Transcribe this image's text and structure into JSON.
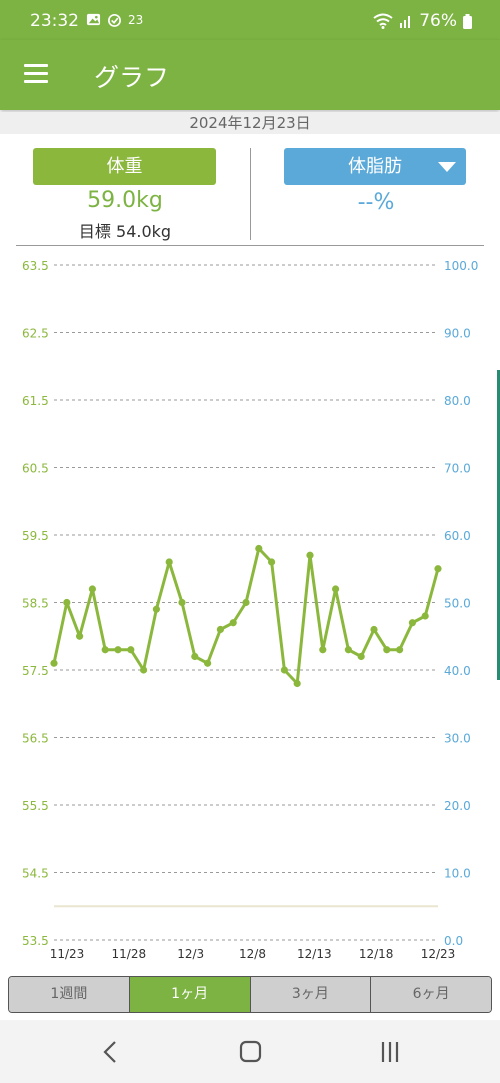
{
  "status_bar": {
    "time": "23:32",
    "notification_icons": [
      "gallery-icon",
      "alarm-icon",
      "calendar-icon"
    ],
    "calendar_badge": "23",
    "battery": "76%"
  },
  "app_bar": {
    "title": "グラフ"
  },
  "date": "2024年12月23日",
  "weight_panel": {
    "label": "体重",
    "value": "59.0kg",
    "goal": "目標 54.0kg",
    "color": "#7cb342"
  },
  "fat_panel": {
    "label": "体脂肪",
    "value": "--%",
    "color": "#5aa9d8"
  },
  "period_tabs": [
    {
      "label": "1週間",
      "active": false
    },
    {
      "label": "1ヶ月",
      "active": true
    },
    {
      "label": "3ヶ月",
      "active": false
    },
    {
      "label": "6ヶ月",
      "active": false
    }
  ],
  "chart_data": {
    "type": "line",
    "x_tick_labels": [
      "11/23",
      "11/28",
      "12/3",
      "12/8",
      "12/13",
      "12/18",
      "12/23"
    ],
    "y_left_ticks": [
      "63.5",
      "62.5",
      "61.5",
      "60.5",
      "59.5",
      "58.5",
      "57.5",
      "56.5",
      "55.5",
      "54.5",
      "53.5"
    ],
    "y_right_ticks": [
      "100.0",
      "90.0",
      "80.0",
      "70.0",
      "60.0",
      "50.0",
      "40.0",
      "30.0",
      "20.0",
      "10.0",
      "0.0"
    ],
    "ylim_left": [
      53.5,
      63.5
    ],
    "ylim_right": [
      0,
      100
    ],
    "goal_value": 54.0,
    "series": [
      {
        "color": "#8bb83c",
        "x": [
          "11/23",
          "11/24",
          "11/25",
          "11/26",
          "11/27",
          "11/28",
          "11/29",
          "11/30",
          "12/1",
          "12/2",
          "12/3",
          "12/4",
          "12/5",
          "12/6",
          "12/7",
          "12/8",
          "12/9",
          "12/10",
          "12/11",
          "12/12",
          "12/13",
          "12/14",
          "12/15",
          "12/16",
          "12/17",
          "12/18",
          "12/19",
          "12/20",
          "12/21",
          "12/22",
          "12/23"
        ],
        "values": [
          57.6,
          58.5,
          58.0,
          58.7,
          57.8,
          57.8,
          57.8,
          57.5,
          58.4,
          59.1,
          58.5,
          57.7,
          57.6,
          58.1,
          58.2,
          58.5,
          59.3,
          59.1,
          57.5,
          57.3,
          59.2,
          57.8,
          58.7,
          57.8,
          57.7,
          58.1,
          57.8,
          57.8,
          58.2,
          58.3,
          59.0
        ]
      }
    ],
    "grid": true
  }
}
